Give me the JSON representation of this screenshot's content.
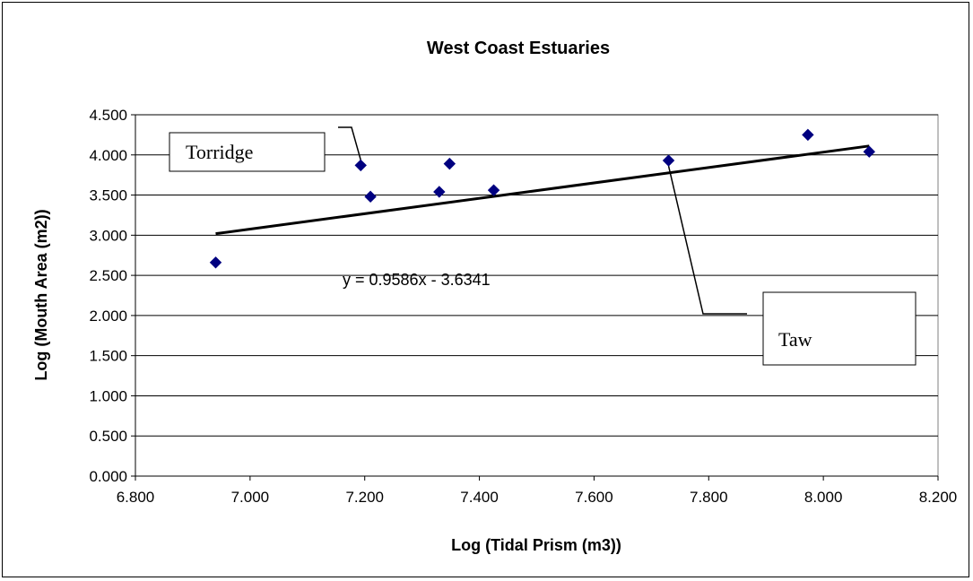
{
  "chart_data": {
    "type": "scatter",
    "title": "West Coast Estuaries",
    "xlabel": "Log (Tidal Prism (m3))",
    "ylabel": "Log (Mouth Area (m2))",
    "xlim": [
      6.8,
      8.2
    ],
    "ylim": [
      0.0,
      4.5
    ],
    "x_ticks": [
      "6.800",
      "7.000",
      "7.200",
      "7.400",
      "7.600",
      "7.800",
      "8.000",
      "8.200"
    ],
    "y_ticks": [
      "0.000",
      "0.500",
      "1.000",
      "1.500",
      "2.000",
      "2.500",
      "3.000",
      "3.500",
      "4.000",
      "4.500"
    ],
    "grid": "horizontal",
    "marker": "diamond",
    "marker_color": "#000080",
    "points": [
      {
        "x": 6.94,
        "y": 2.66
      },
      {
        "x": 7.193,
        "y": 3.87
      },
      {
        "x": 7.21,
        "y": 3.48
      },
      {
        "x": 7.33,
        "y": 3.54
      },
      {
        "x": 7.348,
        "y": 3.89
      },
      {
        "x": 7.425,
        "y": 3.56
      },
      {
        "x": 7.73,
        "y": 3.93
      },
      {
        "x": 7.973,
        "y": 4.25
      },
      {
        "x": 8.08,
        "y": 4.04
      }
    ],
    "trendline": {
      "slope": 0.9586,
      "intercept": -3.6341,
      "x_range": [
        6.94,
        8.08
      ],
      "equation_label": "y = 0.9586x - 3.6341"
    },
    "annotations": [
      {
        "text": "Torridge",
        "target": {
          "x": 7.193,
          "y": 3.87
        }
      },
      {
        "text": "Taw",
        "target": {
          "x": 7.73,
          "y": 3.93
        }
      }
    ]
  }
}
